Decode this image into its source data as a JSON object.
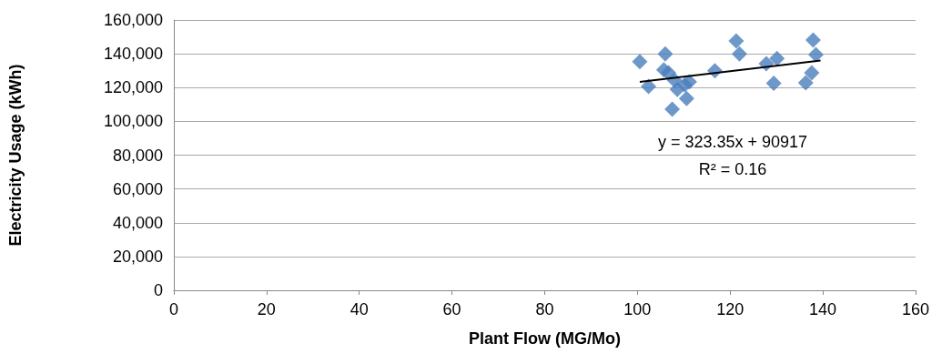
{
  "chart_data": {
    "type": "scatter",
    "xlabel": "Plant Flow (MG/Mo)",
    "ylabel": "Electricity Usage (kWh)",
    "xlim": [
      0,
      160
    ],
    "xticks": [
      0,
      20,
      40,
      60,
      80,
      100,
      120,
      140,
      160
    ],
    "ylim": [
      0,
      160000
    ],
    "yticks": [
      {
        "value": 0,
        "label": "0"
      },
      {
        "value": 20000,
        "label": "20,000"
      },
      {
        "value": 40000,
        "label": "40,000"
      },
      {
        "value": 60000,
        "label": "60,000"
      },
      {
        "value": 80000,
        "label": "80,000"
      },
      {
        "value": 100000,
        "label": "100,000"
      },
      {
        "value": 120000,
        "label": "120,000"
      },
      {
        "value": 140000,
        "label": "140,000"
      },
      {
        "value": 160000,
        "label": "160,000"
      }
    ],
    "grid": "y",
    "marker": "diamond",
    "series": [
      {
        "color": "#4a7ebb",
        "x": [
          100.5,
          102.4,
          106.0,
          105.7,
          106.7,
          108.0,
          108.6,
          110.6,
          111.2,
          107.5,
          110.2,
          116.7,
          121.3,
          122.0,
          127.8,
          130.1,
          129.4,
          136.3,
          137.6,
          137.9,
          138.5
        ],
        "values": [
          135400,
          120700,
          139900,
          130500,
          128800,
          124300,
          118900,
          113500,
          123400,
          107200,
          121600,
          130000,
          147600,
          139900,
          134100,
          137200,
          122500,
          122800,
          128800,
          148100,
          139500
        ]
      },
      {
        "type": "line",
        "color": "#000000",
        "marker": "none",
        "x": [
          100.5,
          139.5
        ],
        "values": [
          123400,
          136000
        ]
      }
    ],
    "annotations": [
      "y = 323.35x + 90917",
      "R² = 0.16"
    ]
  }
}
